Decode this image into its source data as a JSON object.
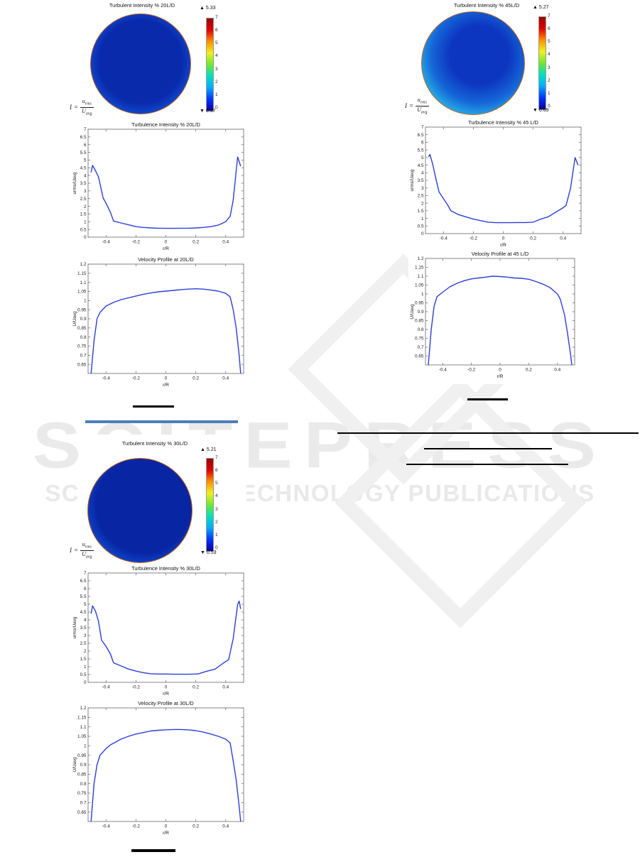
{
  "watermark": {
    "line1": "SCITEPRESS",
    "line2": "SCIENCE AND TECHNOLOGY PUBLICATIONS"
  },
  "symbols": {
    "up": "▲",
    "down": "▼"
  },
  "formula": {
    "lhs": "I",
    "eq": "=",
    "num_base": "u",
    "num_sub": "rms",
    "den_base": "U",
    "den_sub": "avg"
  },
  "colorbar_ticks": [
    "7",
    "6",
    "5",
    "4",
    "3",
    "2",
    "1",
    "0"
  ],
  "colorbar_colors": [
    "#0d00a0",
    "#0033ff",
    "#00aaff",
    "#00e0c0",
    "#70e830",
    "#f0f020",
    "#ff9000",
    "#e00000",
    "#990000"
  ],
  "contours": [
    {
      "id": "c20",
      "title": "Turbulent Intensity % 20L/D",
      "max_marker": "5.33",
      "min_marker": "0.57",
      "scale_min": 0,
      "scale_max": 7,
      "fill_position": "50% 48%",
      "fill_stops": [
        [
          "#0a2aac",
          "0%"
        ],
        [
          "#0a2aac",
          "58%"
        ],
        [
          "#0e46cc",
          "72%"
        ],
        [
          "#15a0e2",
          "80%"
        ],
        [
          "#40c8d8",
          "84%"
        ],
        [
          "#8cd84a",
          "89%"
        ],
        [
          "#e8e03c",
          "93%"
        ],
        [
          "#f0a028",
          "96.5%"
        ],
        [
          "#dd7420",
          "100%"
        ]
      ]
    },
    {
      "id": "c45",
      "title": "Turbulent Intensity % 45L/D",
      "max_marker": "5.27",
      "min_marker": "0.69",
      "scale_min": 0,
      "scale_max": 7,
      "fill_position": "56% 42%",
      "fill_stops": [
        [
          "#0c35c0",
          "0%"
        ],
        [
          "#0c35c0",
          "35%"
        ],
        [
          "#1566d8",
          "58%"
        ],
        [
          "#25a8e4",
          "74%"
        ],
        [
          "#3cc4d4",
          "82%"
        ],
        [
          "#90d848",
          "89%"
        ],
        [
          "#e8e03c",
          "93%"
        ],
        [
          "#f0a028",
          "96.5%"
        ],
        [
          "#dd7420",
          "100%"
        ]
      ]
    },
    {
      "id": "c30",
      "title": "Turbulent Intensity % 30L/D",
      "max_marker": "5.21",
      "min_marker": "0.53",
      "scale_min": 0,
      "scale_max": 7,
      "fill_position": "54% 45%",
      "fill_stops": [
        [
          "#0826a4",
          "0%"
        ],
        [
          "#0826a4",
          "60%"
        ],
        [
          "#0d44c8",
          "74%"
        ],
        [
          "#18a2e0",
          "82%"
        ],
        [
          "#48ccc8",
          "86%"
        ],
        [
          "#90d848",
          "90%"
        ],
        [
          "#e8e03c",
          "94%"
        ],
        [
          "#f0a028",
          "97%"
        ],
        [
          "#dd7420",
          "100%"
        ]
      ]
    }
  ],
  "chart_data": [
    {
      "id": "turb20",
      "type": "line",
      "title": "Turbulence Intensity % 20L/D",
      "xlabel": "r/R",
      "ylabel": "urms/Uavg",
      "xlim": [
        -0.52,
        0.52
      ],
      "ylim": [
        0,
        7
      ],
      "line_color": "#2b3fd6",
      "grid": false,
      "xticks": [
        -0.4,
        -0.2,
        0,
        0.2,
        0.4
      ],
      "xtick_labels": [
        "-0.4",
        "-0.2",
        "0",
        "0.2",
        "0.4"
      ],
      "yticks": [
        0,
        0.5,
        1,
        1.5,
        2,
        2.5,
        3,
        3.5,
        4,
        4.5,
        5,
        5.5,
        6,
        6.5,
        7
      ],
      "ytick_labels": [
        "0",
        "0.5",
        "1",
        "1.5",
        "2",
        "2.5",
        "3",
        "3.5",
        "4",
        "4.5",
        "5",
        "5.5",
        "6",
        "6.5",
        "7"
      ],
      "x": [
        -0.5,
        -0.49,
        -0.47,
        -0.45,
        -0.43,
        -0.42,
        -0.4,
        -0.37,
        -0.35,
        -0.3,
        -0.25,
        -0.2,
        -0.15,
        -0.1,
        -0.05,
        0,
        0.05,
        0.1,
        0.15,
        0.2,
        0.25,
        0.3,
        0.35,
        0.4,
        0.43,
        0.45,
        0.47,
        0.48,
        0.5
      ],
      "y": [
        4.2,
        4.65,
        4.3,
        3.9,
        3.0,
        2.55,
        2.2,
        1.6,
        1.05,
        0.92,
        0.8,
        0.68,
        0.63,
        0.6,
        0.58,
        0.57,
        0.57,
        0.58,
        0.58,
        0.6,
        0.63,
        0.68,
        0.78,
        1.0,
        1.35,
        2.4,
        4.3,
        5.2,
        4.6
      ]
    },
    {
      "id": "vel20",
      "type": "line",
      "title": "Velocity Profile at 20L/D",
      "xlabel": "r/R",
      "ylabel": "U/Uavg",
      "xlim": [
        -0.52,
        0.52
      ],
      "ylim": [
        0.6,
        1.2
      ],
      "line_color": "#2b3fd6",
      "grid": false,
      "xticks": [
        -0.4,
        -0.2,
        0,
        0.2,
        0.4
      ],
      "xtick_labels": [
        "-0.4",
        "-0.2",
        "0",
        "0.2",
        "0.4"
      ],
      "yticks": [
        0.65,
        0.7,
        0.75,
        0.8,
        0.85,
        0.9,
        0.95,
        1,
        1.05,
        1.1,
        1.15,
        1.2
      ],
      "ytick_labels": [
        "0.65",
        "0.7",
        "0.75",
        "0.8",
        "0.85",
        "0.9",
        "0.95",
        "1",
        "1.05",
        "1.1",
        "1.15",
        "1.2"
      ],
      "x": [
        -0.5,
        -0.48,
        -0.46,
        -0.44,
        -0.4,
        -0.35,
        -0.3,
        -0.25,
        -0.2,
        -0.15,
        -0.1,
        -0.05,
        0,
        0.05,
        0.1,
        0.15,
        0.2,
        0.25,
        0.3,
        0.35,
        0.4,
        0.43,
        0.45,
        0.47,
        0.49,
        0.5
      ],
      "y": [
        0.6,
        0.78,
        0.9,
        0.935,
        0.97,
        0.99,
        1.005,
        1.015,
        1.025,
        1.035,
        1.042,
        1.048,
        1.052,
        1.056,
        1.06,
        1.063,
        1.065,
        1.063,
        1.058,
        1.052,
        1.04,
        1.02,
        0.95,
        0.85,
        0.7,
        0.6
      ]
    },
    {
      "id": "turb45",
      "type": "line",
      "title": "Turbulence Intensity % 45 L/D",
      "xlabel": "r/R",
      "ylabel": "urms/Uavg",
      "xlim": [
        -0.52,
        0.52
      ],
      "ylim": [
        0,
        7
      ],
      "line_color": "#2b3fd6",
      "grid": false,
      "xticks": [
        -0.4,
        -0.2,
        0,
        0.2,
        0.4
      ],
      "xtick_labels": [
        "-0.4",
        "-0.2",
        "0",
        "0.2",
        "0.4"
      ],
      "yticks": [
        0,
        0.5,
        1,
        1.5,
        2,
        2.5,
        3,
        3.5,
        4,
        4.5,
        5,
        5.5,
        6,
        6.5,
        7
      ],
      "ytick_labels": [
        "0",
        "0.5",
        "1",
        "1.5",
        "2",
        "2.5",
        "3",
        "3.5",
        "4",
        "4.5",
        "5",
        "5.5",
        "6",
        "6.5",
        "7"
      ],
      "x": [
        -0.5,
        -0.49,
        -0.47,
        -0.45,
        -0.43,
        -0.4,
        -0.37,
        -0.35,
        -0.3,
        -0.25,
        -0.2,
        -0.15,
        -0.1,
        -0.05,
        0,
        0.05,
        0.1,
        0.15,
        0.2,
        0.25,
        0.3,
        0.35,
        0.4,
        0.42,
        0.45,
        0.48,
        0.5
      ],
      "y": [
        5.05,
        5.2,
        4.5,
        3.6,
        2.75,
        2.3,
        1.85,
        1.5,
        1.25,
        1.1,
        0.95,
        0.85,
        0.75,
        0.72,
        0.72,
        0.72,
        0.73,
        0.73,
        0.75,
        0.95,
        1.1,
        1.4,
        1.7,
        1.85,
        3.0,
        5.0,
        4.5
      ]
    },
    {
      "id": "vel45",
      "type": "line",
      "title": "Velocity Profile at 45 L/D",
      "xlabel": "r/R",
      "ylabel": "U/Uavg",
      "xlim": [
        -0.52,
        0.52
      ],
      "ylim": [
        0.6,
        1.2
      ],
      "line_color": "#2b3fd6",
      "grid": false,
      "xticks": [
        -0.4,
        -0.2,
        0,
        0.2,
        0.4
      ],
      "xtick_labels": [
        "-0.4",
        "-0.2",
        "0",
        "0.2",
        "0.4"
      ],
      "yticks": [
        0.65,
        0.7,
        0.75,
        0.8,
        0.85,
        0.9,
        0.95,
        1,
        1.05,
        1.1,
        1.15,
        1.2
      ],
      "ytick_labels": [
        "0.65",
        "0.7",
        "0.75",
        "0.8",
        "0.85",
        "0.9",
        "0.95",
        "1",
        "1.05",
        "1.1",
        "1.15",
        "1.2"
      ],
      "x": [
        -0.5,
        -0.48,
        -0.46,
        -0.44,
        -0.4,
        -0.35,
        -0.3,
        -0.25,
        -0.2,
        -0.15,
        -0.1,
        -0.05,
        0,
        0.05,
        0.1,
        0.15,
        0.2,
        0.25,
        0.3,
        0.35,
        0.4,
        0.42,
        0.45,
        0.47,
        0.49,
        0.5
      ],
      "y": [
        0.6,
        0.8,
        0.93,
        0.985,
        1.01,
        1.04,
        1.06,
        1.075,
        1.085,
        1.09,
        1.095,
        1.1,
        1.098,
        1.095,
        1.09,
        1.088,
        1.083,
        1.07,
        1.055,
        1.035,
        1.0,
        0.97,
        0.88,
        0.78,
        0.67,
        0.6
      ]
    },
    {
      "id": "turb30",
      "type": "line",
      "title": "Turbulence Intensity % 30L/D",
      "xlabel": "r/R",
      "ylabel": "urms/Uavg",
      "xlim": [
        -0.52,
        0.52
      ],
      "ylim": [
        0,
        7
      ],
      "line_color": "#2b3fd6",
      "grid": false,
      "xticks": [
        -0.4,
        -0.2,
        0,
        0.2,
        0.4
      ],
      "xtick_labels": [
        "-0.4",
        "-0.2",
        "0",
        "0.2",
        "0.4"
      ],
      "yticks": [
        0,
        0.5,
        1,
        1.5,
        2,
        2.5,
        3,
        3.5,
        4,
        4.5,
        5,
        5.5,
        6,
        6.5,
        7
      ],
      "ytick_labels": [
        "0",
        "0.5",
        "1",
        "1.5",
        "2",
        "2.5",
        "3",
        "3.5",
        "4",
        "4.5",
        "5",
        "5.5",
        "6",
        "6.5",
        "7"
      ],
      "x": [
        -0.5,
        -0.49,
        -0.47,
        -0.45,
        -0.44,
        -0.43,
        -0.4,
        -0.37,
        -0.35,
        -0.3,
        -0.25,
        -0.2,
        -0.15,
        -0.1,
        -0.05,
        0,
        0.05,
        0.1,
        0.15,
        0.2,
        0.22,
        0.27,
        0.33,
        0.38,
        0.42,
        0.45,
        0.48,
        0.49,
        0.5
      ],
      "y": [
        4.4,
        4.9,
        4.55,
        3.9,
        3.3,
        2.7,
        2.3,
        1.8,
        1.25,
        1.05,
        0.85,
        0.72,
        0.62,
        0.55,
        0.53,
        0.53,
        0.52,
        0.52,
        0.52,
        0.53,
        0.55,
        0.7,
        0.85,
        1.2,
        1.45,
        2.8,
        5.0,
        5.2,
        4.7
      ]
    },
    {
      "id": "vel30",
      "type": "line",
      "title": "Velocity Profile at 30L/D",
      "xlabel": "r/R",
      "ylabel": "U/Uavg",
      "xlim": [
        -0.52,
        0.52
      ],
      "ylim": [
        0.6,
        1.2
      ],
      "line_color": "#2b3fd6",
      "grid": false,
      "xticks": [
        -0.4,
        -0.2,
        0,
        0.2,
        0.4
      ],
      "xtick_labels": [
        "-0.4",
        "-0.2",
        "0",
        "0.2",
        "0.4"
      ],
      "yticks": [
        0.65,
        0.7,
        0.75,
        0.8,
        0.85,
        0.9,
        0.95,
        1,
        1.05,
        1.1,
        1.15,
        1.2
      ],
      "ytick_labels": [
        "0.65",
        "0.7",
        "0.75",
        "0.8",
        "0.85",
        "0.9",
        "0.95",
        "1",
        "1.05",
        "1.1",
        "1.15",
        "1.2"
      ],
      "x": [
        -0.5,
        -0.48,
        -0.46,
        -0.44,
        -0.4,
        -0.37,
        -0.3,
        -0.25,
        -0.2,
        -0.15,
        -0.1,
        -0.05,
        0,
        0.05,
        0.1,
        0.15,
        0.2,
        0.25,
        0.3,
        0.35,
        0.4,
        0.43,
        0.45,
        0.47,
        0.49,
        0.5
      ],
      "y": [
        0.6,
        0.8,
        0.9,
        0.95,
        0.985,
        1.005,
        1.035,
        1.05,
        1.062,
        1.07,
        1.078,
        1.082,
        1.084,
        1.086,
        1.086,
        1.084,
        1.08,
        1.072,
        1.062,
        1.05,
        1.035,
        1.015,
        0.92,
        0.82,
        0.68,
        0.6
      ]
    }
  ]
}
